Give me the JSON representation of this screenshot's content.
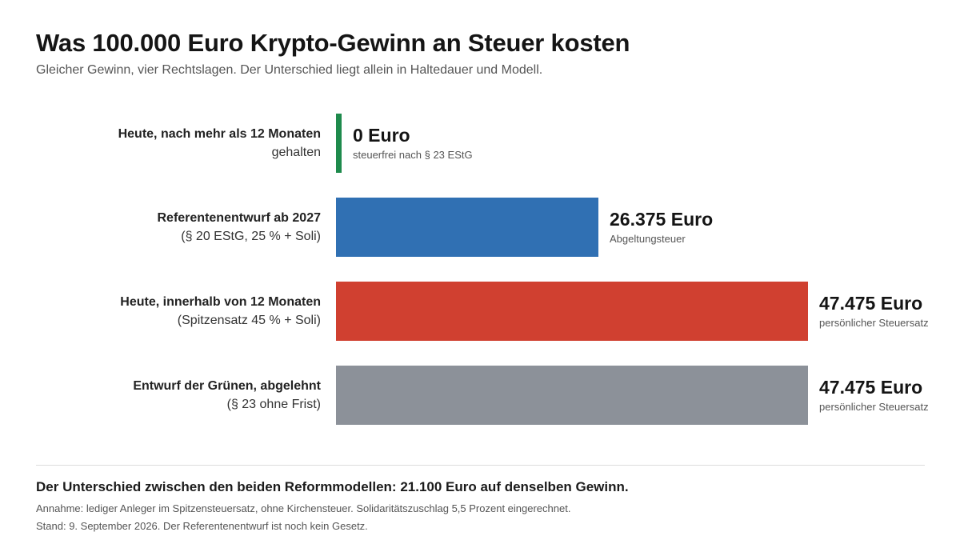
{
  "header": {
    "title": "Was 100.000 Euro Krypto-Gewinn an Steuer kosten",
    "subtitle": "Gleicher Gewinn, vier Rechtslagen. Der Unterschied liegt allein in Haltedauer und Modell."
  },
  "chart_data": {
    "type": "bar",
    "orientation": "horizontal",
    "title": "Was 100.000 Euro Krypto-Gewinn an Steuer kosten",
    "subtitle": "Gleicher Gewinn, vier Rechtslagen. Der Unterschied liegt allein in Haltedauer und Modell.",
    "unit": "Euro",
    "xlim": [
      0,
      47475
    ],
    "grid": false,
    "legend": "none",
    "categories": [
      {
        "label_line1": "Heute, nach mehr als 12 Monaten",
        "label_line2": "gehalten",
        "value": 0,
        "value_label": "0 Euro",
        "note": "steuerfrei nach § 23 EStG",
        "color": "#1e8a4c"
      },
      {
        "label_line1": "Referentenentwurf ab 2027",
        "label_line2": "(§ 20 EStG, 25 % + Soli)",
        "value": 26375,
        "value_label": "26.375 Euro",
        "note": "Abgeltungsteuer",
        "color": "#3070b3"
      },
      {
        "label_line1": "Heute, innerhalb von 12 Monaten",
        "label_line2": "(Spitzensatz 45 % + Soli)",
        "value": 47475,
        "value_label": "47.475 Euro",
        "note": "persönlicher Steuersatz",
        "color": "#d04030"
      },
      {
        "label_line1": "Entwurf der Grünen, abgelehnt",
        "label_line2": "(§ 23 ohne Frist)",
        "value": 47475,
        "value_label": "47.475 Euro",
        "note": "persönlicher Steuersatz",
        "color": "#8c9199"
      }
    ]
  },
  "footer": {
    "conclusion": "Der Unterschied zwischen den beiden Reformmodellen: 21.100 Euro auf denselben Gewinn.",
    "footnote_1": "Annahme: lediger Anleger im Spitzensteuersatz, ohne Kirchensteuer. Solidaritätszuschlag 5,5 Prozent eingerechnet.",
    "footnote_2": "Stand: 9. September 2026. Der Referentenentwurf ist noch kein Gesetz."
  }
}
